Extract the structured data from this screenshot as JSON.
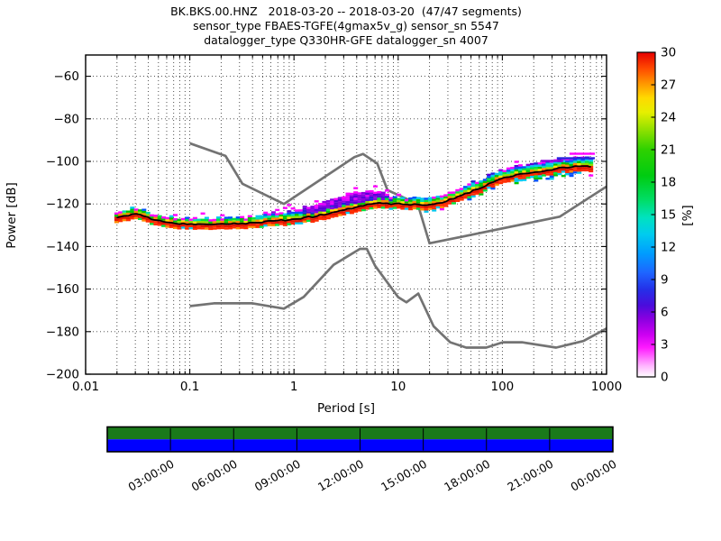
{
  "header": {
    "title_line1": "BK.BKS.00.HNZ   2018-03-20 -- 2018-03-20  (47/47 segments)",
    "title_line2": "sensor_type FBAES-TGFE(4gmax5v_g) sensor_sn 5547",
    "title_line3": "datalogger_type Q330HR-GFE datalogger_sn 4007"
  },
  "axes": {
    "xlabel": "Period [s]",
    "ylabel": "Power [dB]",
    "x_ticks": [
      {
        "value": 0.01,
        "label": "0.01"
      },
      {
        "value": 0.1,
        "label": "0.1"
      },
      {
        "value": 1,
        "label": "1"
      },
      {
        "value": 10,
        "label": "10"
      },
      {
        "value": 100,
        "label": "100"
      },
      {
        "value": 1000,
        "label": "1000"
      }
    ],
    "y_ticks": [
      {
        "value": -60,
        "label": "−60"
      },
      {
        "value": -80,
        "label": "−80"
      },
      {
        "value": -100,
        "label": "−100"
      },
      {
        "value": -120,
        "label": "−120"
      },
      {
        "value": -140,
        "label": "−140"
      },
      {
        "value": -160,
        "label": "−160"
      },
      {
        "value": -180,
        "label": "−180"
      },
      {
        "value": -200,
        "label": "−200"
      }
    ]
  },
  "colorbar": {
    "label": "[%]",
    "min": 0,
    "max": 30,
    "ticks": [
      {
        "value": 0,
        "label": "0"
      },
      {
        "value": 3,
        "label": "3"
      },
      {
        "value": 6,
        "label": "6"
      },
      {
        "value": 9,
        "label": "9"
      },
      {
        "value": 12,
        "label": "12"
      },
      {
        "value": 15,
        "label": "15"
      },
      {
        "value": 18,
        "label": "18"
      },
      {
        "value": 21,
        "label": "21"
      },
      {
        "value": 24,
        "label": "24"
      },
      {
        "value": 27,
        "label": "27"
      },
      {
        "value": 30,
        "label": "30"
      }
    ],
    "gradient_stops": [
      {
        "o": 0,
        "c": "#ffffff"
      },
      {
        "o": 0.035,
        "c": "#ffb3ff"
      },
      {
        "o": 0.09,
        "c": "#ff1aff"
      },
      {
        "o": 0.13,
        "c": "#cc00f2"
      },
      {
        "o": 0.18,
        "c": "#8800e0"
      },
      {
        "o": 0.22,
        "c": "#4b0cdc"
      },
      {
        "o": 0.27,
        "c": "#2430e8"
      },
      {
        "o": 0.32,
        "c": "#1e64ff"
      },
      {
        "o": 0.38,
        "c": "#009cff"
      },
      {
        "o": 0.44,
        "c": "#00ccee"
      },
      {
        "o": 0.49,
        "c": "#00e2c0"
      },
      {
        "o": 0.545,
        "c": "#00dd66"
      },
      {
        "o": 0.62,
        "c": "#00cc11"
      },
      {
        "o": 0.7,
        "c": "#2ed100"
      },
      {
        "o": 0.76,
        "c": "#8ee000"
      },
      {
        "o": 0.815,
        "c": "#e6ef00"
      },
      {
        "o": 0.86,
        "c": "#ffd900"
      },
      {
        "o": 0.905,
        "c": "#ff9400"
      },
      {
        "o": 0.95,
        "c": "#ff4a00"
      },
      {
        "o": 1,
        "c": "#e60000"
      }
    ]
  },
  "timeline": {
    "green_color": "#1a7a1a",
    "blue_color": "#0000ff",
    "hours_span": 24,
    "ticks": [
      {
        "hour": 3,
        "label": "03:00:00"
      },
      {
        "hour": 6,
        "label": "06:00:00"
      },
      {
        "hour": 9,
        "label": "09:00:00"
      },
      {
        "hour": 12,
        "label": "12:00:00"
      },
      {
        "hour": 15,
        "label": "15:00:00"
      },
      {
        "hour": 18,
        "label": "18:00:00"
      },
      {
        "hour": 21,
        "label": "21:00:00"
      },
      {
        "hour": 24,
        "label": "00:00:00"
      }
    ]
  },
  "chart_data": {
    "type": "heatmap",
    "title": "BK.BKS.00.HNZ 2018-03-20 -- 2018-03-20 (47/47 segments)",
    "xlabel": "Period [s]",
    "ylabel": "Power [dB]",
    "xscale": "log",
    "xlim": [
      0.01,
      1000
    ],
    "ylim": [
      -200,
      -50
    ],
    "grid": true,
    "colorbar": {
      "label": "[%]",
      "min": 0,
      "max": 30,
      "tick_step": 3,
      "colormap": "pqlx"
    },
    "psd_mode_line": {
      "periods": [
        0.019,
        0.024,
        0.031,
        0.045,
        0.07,
        0.11,
        0.2,
        0.35,
        0.6,
        1.0,
        1.5,
        2.2,
        3.2,
        4.5,
        6.5,
        10,
        14,
        19,
        26,
        40,
        65,
        100,
        150,
        230,
        350,
        450,
        720
      ],
      "db": [
        -126.3,
        -125.8,
        -124.6,
        -127.5,
        -129.2,
        -129.3,
        -129.6,
        -129.0,
        -128.2,
        -127.2,
        -126.0,
        -124.4,
        -122.6,
        -120.6,
        -119.8,
        -120.0,
        -120.3,
        -120.8,
        -119.3,
        -116.3,
        -111.8,
        -108.0,
        -106.0,
        -104.8,
        -103.3,
        -102.6,
        -102.3
      ]
    },
    "psd_band_offsets": {
      "above": {
        "periods": [
          0.019,
          0.05,
          0.3,
          1.0,
          2.0,
          3.5,
          6.0,
          10,
          20,
          50,
          200,
          720
        ],
        "db": [
          2,
          2,
          2.5,
          3.5,
          6,
          7,
          5.5,
          2.2,
          2.8,
          3.5,
          4,
          4
        ]
      },
      "below": {
        "periods": [
          0.019,
          0.1,
          1,
          5,
          15,
          50,
          200,
          720
        ],
        "db": [
          1.8,
          2.2,
          2,
          2,
          2.5,
          3.2,
          3.8,
          4.2
        ]
      }
    },
    "outlier_runs": [
      {
        "period_min": 441,
        "period_max": 772,
        "db": -96.4,
        "color": "#ff00ff"
      },
      {
        "period_min": 333,
        "period_max": 772,
        "db": -98.5,
        "color": "#2525dd"
      },
      {
        "period_min": 233,
        "period_max": 383,
        "db": -99.8,
        "color": "#8a00e0"
      }
    ],
    "noise_models": {
      "nhnm": {
        "periods": [
          0.1,
          0.22,
          0.32,
          0.8,
          3.8,
          4.6,
          6.3,
          7.9,
          15.4,
          20.0,
          354.8,
          1000
        ],
        "db": [
          -91.5,
          -97.4,
          -110.5,
          -120.0,
          -98.0,
          -96.5,
          -101.0,
          -113.5,
          -120.0,
          -138.5,
          -126.0,
          -111.8
        ]
      },
      "nlnm": {
        "periods": [
          0.1,
          0.17,
          0.4,
          0.8,
          1.24,
          2.4,
          4.3,
          5.0,
          6.0,
          10.0,
          12.0,
          15.6,
          21.9,
          31.6,
          45.0,
          70.0,
          101.0,
          154.0,
          328.0,
          600.0,
          1000
        ],
        "db": [
          -168.0,
          -166.7,
          -166.7,
          -169.2,
          -163.7,
          -148.6,
          -141.1,
          -141.1,
          -149.0,
          -163.8,
          -166.2,
          -162.1,
          -177.5,
          -185.0,
          -187.5,
          -187.5,
          -185.0,
          -185.0,
          -187.5,
          -184.4,
          -178.5
        ]
      }
    },
    "histogram_palette": {
      "red": "#e31400",
      "red2": "#ff2d00",
      "orange": "#ff8c00",
      "yellow": "#ffe400",
      "ygreen": "#8fdc00",
      "green": "#00c400",
      "green2": "#00e33c",
      "teal": "#00ddb0",
      "cyan": "#00c8f0",
      "blue": "#0050ff",
      "blue2": "#2222d8",
      "indigo": "#5a00d8",
      "purple": "#8a00e0",
      "magenta": "#e400ff",
      "magenta2": "#ff00ff"
    },
    "noise_model_color": "#737373",
    "period_step_octaves": 0.125,
    "period_range_shown": [
      0.019,
      720
    ]
  }
}
